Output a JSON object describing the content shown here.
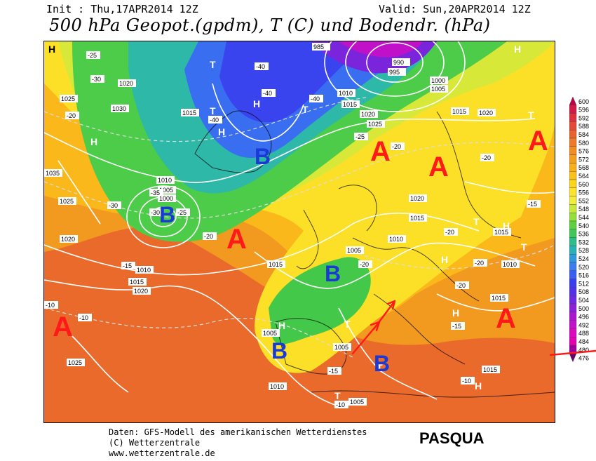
{
  "header": {
    "init": "Init : Thu,17APR2014 12Z",
    "valid": "Valid: Sun,20APR2014 12Z",
    "title": "500 hPa Geopot.(gpdm), T (C) und Bodendr. (hPa)"
  },
  "footer": {
    "line1": "Daten: GFS-Modell des amerikanischen Wetterdienstes",
    "line2": "(C) Wetterzentrale",
    "line3": "www.wetterzentrale.de",
    "author": "PASQUA"
  },
  "legend": {
    "values": [
      "600",
      "596",
      "592",
      "588",
      "584",
      "580",
      "576",
      "572",
      "568",
      "564",
      "560",
      "556",
      "552",
      "548",
      "544",
      "540",
      "536",
      "532",
      "528",
      "524",
      "520",
      "516",
      "512",
      "508",
      "504",
      "500",
      "496",
      "492",
      "488",
      "484",
      "480",
      "476"
    ],
    "colors": [
      "#c0004a",
      "#d21a48",
      "#de3040",
      "#e44a36",
      "#e8622e",
      "#ec7a28",
      "#f08c22",
      "#f49e1e",
      "#f8b01a",
      "#fac216",
      "#fcd418",
      "#fce22a",
      "#f2ec3a",
      "#c8e83c",
      "#96de3c",
      "#5ed040",
      "#3ec85a",
      "#2ebc8a",
      "#28b2b6",
      "#2e9adc",
      "#3a7ef0",
      "#3a5ef2",
      "#3a3ef0",
      "#5030e8",
      "#6e28e0",
      "#8c20d8",
      "#aa18d0",
      "#c410c8",
      "#dc08c0",
      "#e600b4",
      "#a000a0",
      "#700070"
    ]
  },
  "map": {
    "centers": [
      {
        "id": "A1",
        "letter": "A",
        "kind": "high"
      },
      {
        "id": "A2",
        "letter": "A",
        "kind": "high"
      },
      {
        "id": "A3",
        "letter": "A",
        "kind": "high"
      },
      {
        "id": "A4",
        "letter": "A",
        "kind": "high"
      },
      {
        "id": "A5",
        "letter": "A",
        "kind": "high"
      },
      {
        "id": "A6",
        "letter": "A",
        "kind": "high"
      },
      {
        "id": "B1",
        "letter": "B",
        "kind": "low"
      },
      {
        "id": "B2",
        "letter": "B",
        "kind": "low"
      },
      {
        "id": "B3",
        "letter": "B",
        "kind": "low"
      },
      {
        "id": "B4",
        "letter": "B",
        "kind": "low"
      },
      {
        "id": "B5",
        "letter": "B",
        "kind": "low"
      }
    ],
    "isobar_labels": [
      "1020",
      "1025",
      "1030",
      "1015",
      "1010",
      "1005",
      "1000",
      "995",
      "985",
      "990",
      "1035"
    ],
    "temp_labels": [
      "-25",
      "-30",
      "-35",
      "-40",
      "-20",
      "-15",
      "-10"
    ]
  }
}
